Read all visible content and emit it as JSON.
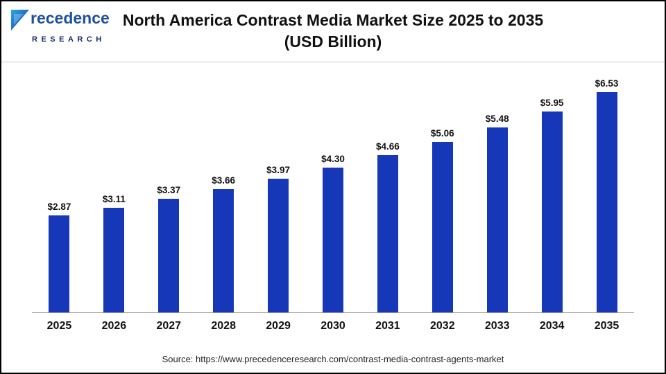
{
  "header": {
    "logo": {
      "word": "recedence",
      "sub": "RESEARCH"
    },
    "title_line1": "North America Contrast Media Market Size 2025 to 2035",
    "title_line2": "(USD Billion)"
  },
  "chart_data": {
    "type": "bar",
    "title": "North America Contrast Media Market Size 2025 to 2035 (USD Billion)",
    "categories": [
      "2025",
      "2026",
      "2027",
      "2028",
      "2029",
      "2030",
      "2031",
      "2032",
      "2033",
      "2034",
      "2035"
    ],
    "values": [
      2.87,
      3.11,
      3.37,
      3.66,
      3.97,
      4.3,
      4.66,
      5.06,
      5.48,
      5.95,
      6.53
    ],
    "value_labels": [
      "$2.87",
      "$3.11",
      "$3.37",
      "$3.66",
      "$3.97",
      "$4.30",
      "$4.66",
      "$5.06",
      "$5.48",
      "$5.95",
      "$6.53"
    ],
    "xlabel": "",
    "ylabel": "",
    "ylim": [
      0,
      7
    ],
    "grid": false,
    "legend": "none",
    "bar_color": "#1638b8"
  },
  "footer": {
    "source": "Source: https://www.precedenceresearch.com/contrast-media-contrast-agents-market"
  }
}
